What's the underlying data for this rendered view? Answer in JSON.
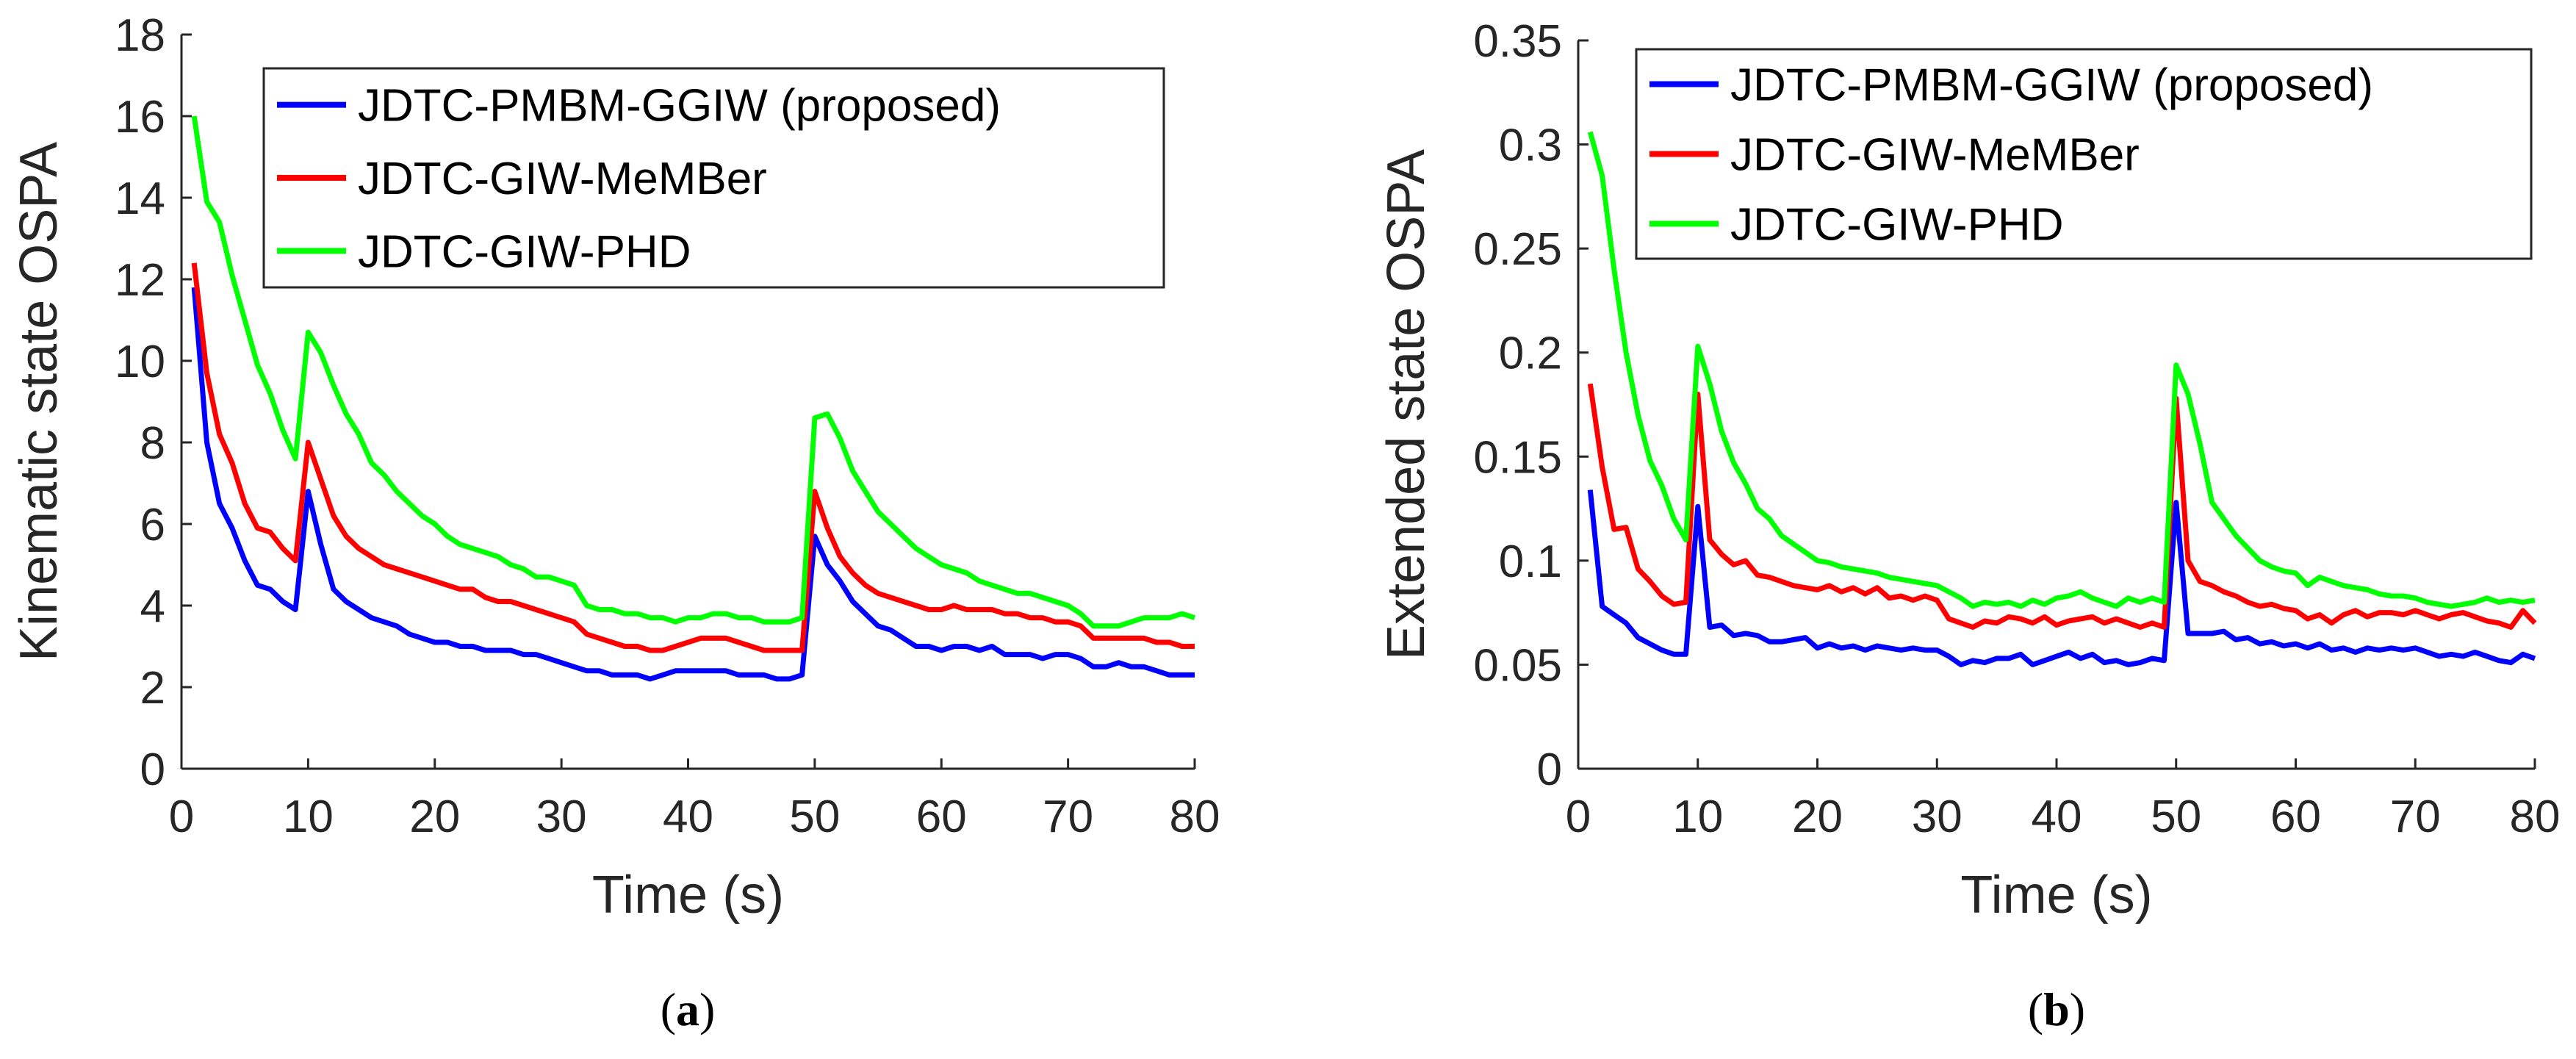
{
  "chart_data": [
    {
      "type": "line",
      "caption_letter": "a",
      "xlabel": "Time (s)",
      "ylabel": "Kinematic state OSPA",
      "xlim": [
        0,
        80
      ],
      "ylim": [
        0,
        18
      ],
      "xticks": [
        0,
        10,
        20,
        30,
        40,
        50,
        60,
        70,
        80
      ],
      "yticks": [
        0,
        2,
        4,
        6,
        8,
        10,
        12,
        14,
        16,
        18
      ],
      "legend_position": "top-right",
      "x": [
        1,
        2,
        3,
        4,
        5,
        6,
        7,
        8,
        9,
        10,
        11,
        12,
        13,
        14,
        15,
        16,
        17,
        18,
        19,
        20,
        21,
        22,
        23,
        24,
        25,
        26,
        27,
        28,
        29,
        30,
        31,
        32,
        33,
        34,
        35,
        36,
        37,
        38,
        39,
        40,
        41,
        42,
        43,
        44,
        45,
        46,
        47,
        48,
        49,
        50,
        51,
        52,
        53,
        54,
        55,
        56,
        57,
        58,
        59,
        60,
        61,
        62,
        63,
        64,
        65,
        66,
        67,
        68,
        69,
        70,
        71,
        72,
        73,
        74,
        75,
        76,
        77,
        78,
        79,
        80
      ],
      "series": [
        {
          "name": "JDTC-PMBM-GGIW (proposed)",
          "color": "#0000ff",
          "values": [
            11.8,
            8.0,
            6.5,
            5.9,
            5.1,
            4.5,
            4.4,
            4.1,
            3.9,
            6.8,
            5.5,
            4.4,
            4.1,
            3.9,
            3.7,
            3.6,
            3.5,
            3.3,
            3.2,
            3.1,
            3.1,
            3.0,
            3.0,
            2.9,
            2.9,
            2.9,
            2.8,
            2.8,
            2.7,
            2.6,
            2.5,
            2.4,
            2.4,
            2.3,
            2.3,
            2.3,
            2.2,
            2.3,
            2.4,
            2.4,
            2.4,
            2.4,
            2.4,
            2.3,
            2.3,
            2.3,
            2.2,
            2.2,
            2.3,
            5.7,
            5.0,
            4.6,
            4.1,
            3.8,
            3.5,
            3.4,
            3.2,
            3.0,
            3.0,
            2.9,
            3.0,
            3.0,
            2.9,
            3.0,
            2.8,
            2.8,
            2.8,
            2.7,
            2.8,
            2.8,
            2.7,
            2.5,
            2.5,
            2.6,
            2.5,
            2.5,
            2.4,
            2.3,
            2.3,
            2.3
          ]
        },
        {
          "name": "JDTC-GIW-MeMBer",
          "color": "#ff0000",
          "values": [
            12.4,
            9.7,
            8.2,
            7.5,
            6.5,
            5.9,
            5.8,
            5.4,
            5.1,
            8.0,
            7.1,
            6.2,
            5.7,
            5.4,
            5.2,
            5.0,
            4.9,
            4.8,
            4.7,
            4.6,
            4.5,
            4.4,
            4.4,
            4.2,
            4.1,
            4.1,
            4.0,
            3.9,
            3.8,
            3.7,
            3.6,
            3.3,
            3.2,
            3.1,
            3.0,
            3.0,
            2.9,
            2.9,
            3.0,
            3.1,
            3.2,
            3.2,
            3.2,
            3.1,
            3.0,
            2.9,
            2.9,
            2.9,
            2.9,
            6.8,
            5.9,
            5.2,
            4.8,
            4.5,
            4.3,
            4.2,
            4.1,
            4.0,
            3.9,
            3.9,
            4.0,
            3.9,
            3.9,
            3.9,
            3.8,
            3.8,
            3.7,
            3.7,
            3.6,
            3.6,
            3.5,
            3.2,
            3.2,
            3.2,
            3.2,
            3.2,
            3.1,
            3.1,
            3.0,
            3.0
          ]
        },
        {
          "name": "JDTC-GIW-PHD",
          "color": "#00ff00",
          "values": [
            16.0,
            13.9,
            13.4,
            12.1,
            11.0,
            9.9,
            9.2,
            8.3,
            7.6,
            10.7,
            10.2,
            9.4,
            8.7,
            8.2,
            7.5,
            7.2,
            6.8,
            6.5,
            6.2,
            6.0,
            5.7,
            5.5,
            5.4,
            5.3,
            5.2,
            5.0,
            4.9,
            4.7,
            4.7,
            4.6,
            4.5,
            4.0,
            3.9,
            3.9,
            3.8,
            3.8,
            3.7,
            3.7,
            3.6,
            3.7,
            3.7,
            3.8,
            3.8,
            3.7,
            3.7,
            3.6,
            3.6,
            3.6,
            3.7,
            8.6,
            8.7,
            8.1,
            7.3,
            6.8,
            6.3,
            6.0,
            5.7,
            5.4,
            5.2,
            5.0,
            4.9,
            4.8,
            4.6,
            4.5,
            4.4,
            4.3,
            4.3,
            4.2,
            4.1,
            4.0,
            3.8,
            3.5,
            3.5,
            3.5,
            3.6,
            3.7,
            3.7,
            3.7,
            3.8,
            3.7
          ]
        }
      ]
    },
    {
      "type": "line",
      "caption_letter": "b",
      "xlabel": "Time (s)",
      "ylabel": "Extended state OSPA",
      "xlim": [
        0,
        80
      ],
      "ylim": [
        0,
        0.35
      ],
      "xticks": [
        0,
        10,
        20,
        30,
        40,
        50,
        60,
        70,
        80
      ],
      "yticks": [
        0,
        0.05,
        0.1,
        0.15,
        0.2,
        0.25,
        0.3,
        0.35
      ],
      "legend_position": "top-right",
      "x": [
        1,
        2,
        3,
        4,
        5,
        6,
        7,
        8,
        9,
        10,
        11,
        12,
        13,
        14,
        15,
        16,
        17,
        18,
        19,
        20,
        21,
        22,
        23,
        24,
        25,
        26,
        27,
        28,
        29,
        30,
        31,
        32,
        33,
        34,
        35,
        36,
        37,
        38,
        39,
        40,
        41,
        42,
        43,
        44,
        45,
        46,
        47,
        48,
        49,
        50,
        51,
        52,
        53,
        54,
        55,
        56,
        57,
        58,
        59,
        60,
        61,
        62,
        63,
        64,
        65,
        66,
        67,
        68,
        69,
        70,
        71,
        72,
        73,
        74,
        75,
        76,
        77,
        78,
        79,
        80
      ],
      "series": [
        {
          "name": "JDTC-PMBM-GGIW (proposed)",
          "color": "#0000ff",
          "values": [
            0.134,
            0.078,
            0.074,
            0.07,
            0.063,
            0.06,
            0.057,
            0.055,
            0.055,
            0.126,
            0.068,
            0.069,
            0.064,
            0.065,
            0.064,
            0.061,
            0.061,
            0.062,
            0.063,
            0.058,
            0.06,
            0.058,
            0.059,
            0.057,
            0.059,
            0.058,
            0.057,
            0.058,
            0.057,
            0.057,
            0.054,
            0.05,
            0.052,
            0.051,
            0.053,
            0.053,
            0.055,
            0.05,
            0.052,
            0.054,
            0.056,
            0.053,
            0.055,
            0.051,
            0.052,
            0.05,
            0.051,
            0.053,
            0.052,
            0.128,
            0.065,
            0.065,
            0.065,
            0.066,
            0.062,
            0.063,
            0.06,
            0.061,
            0.059,
            0.06,
            0.058,
            0.06,
            0.057,
            0.058,
            0.056,
            0.058,
            0.057,
            0.058,
            0.057,
            0.058,
            0.056,
            0.054,
            0.055,
            0.054,
            0.056,
            0.054,
            0.052,
            0.051,
            0.055,
            0.053
          ]
        },
        {
          "name": "JDTC-GIW-MeMBer",
          "color": "#ff0000",
          "values": [
            0.185,
            0.145,
            0.115,
            0.116,
            0.096,
            0.09,
            0.083,
            0.079,
            0.08,
            0.18,
            0.11,
            0.103,
            0.098,
            0.1,
            0.093,
            0.092,
            0.09,
            0.088,
            0.087,
            0.086,
            0.088,
            0.085,
            0.087,
            0.084,
            0.087,
            0.082,
            0.083,
            0.081,
            0.083,
            0.081,
            0.072,
            0.07,
            0.068,
            0.071,
            0.07,
            0.073,
            0.072,
            0.07,
            0.073,
            0.069,
            0.071,
            0.072,
            0.073,
            0.07,
            0.072,
            0.07,
            0.068,
            0.07,
            0.068,
            0.178,
            0.1,
            0.09,
            0.088,
            0.085,
            0.083,
            0.08,
            0.078,
            0.079,
            0.077,
            0.076,
            0.072,
            0.074,
            0.07,
            0.074,
            0.076,
            0.073,
            0.075,
            0.075,
            0.074,
            0.076,
            0.074,
            0.072,
            0.074,
            0.075,
            0.073,
            0.071,
            0.07,
            0.068,
            0.076,
            0.07
          ]
        },
        {
          "name": "JDTC-GIW-PHD",
          "color": "#00ff00",
          "values": [
            0.306,
            0.285,
            0.24,
            0.2,
            0.17,
            0.148,
            0.136,
            0.12,
            0.11,
            0.203,
            0.185,
            0.162,
            0.147,
            0.137,
            0.125,
            0.12,
            0.112,
            0.108,
            0.104,
            0.1,
            0.099,
            0.097,
            0.096,
            0.095,
            0.094,
            0.092,
            0.091,
            0.09,
            0.089,
            0.088,
            0.085,
            0.082,
            0.078,
            0.08,
            0.079,
            0.08,
            0.078,
            0.081,
            0.079,
            0.082,
            0.083,
            0.085,
            0.082,
            0.08,
            0.078,
            0.082,
            0.08,
            0.082,
            0.08,
            0.194,
            0.18,
            0.156,
            0.128,
            0.12,
            0.112,
            0.106,
            0.1,
            0.097,
            0.095,
            0.094,
            0.088,
            0.092,
            0.09,
            0.088,
            0.087,
            0.086,
            0.084,
            0.083,
            0.083,
            0.082,
            0.08,
            0.079,
            0.078,
            0.079,
            0.08,
            0.082,
            0.08,
            0.081,
            0.08,
            0.081
          ]
        }
      ]
    }
  ]
}
